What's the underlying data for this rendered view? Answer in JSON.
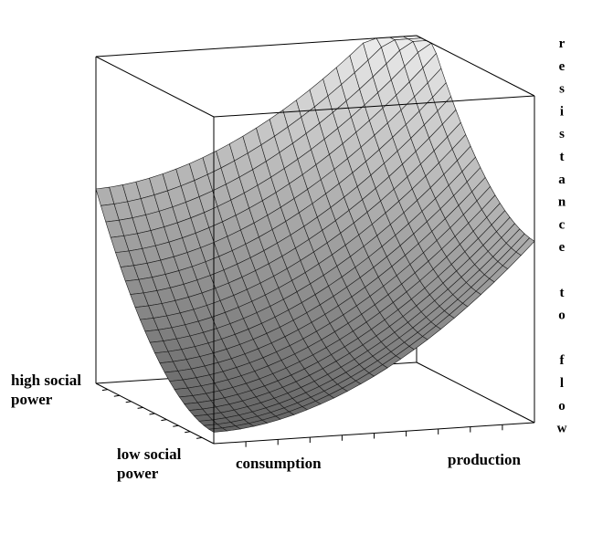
{
  "axes": {
    "depth_far": "high social power",
    "depth_near": "low social power",
    "x_left": "consumption",
    "x_right": "production",
    "z": "resistance to flow"
  }
}
